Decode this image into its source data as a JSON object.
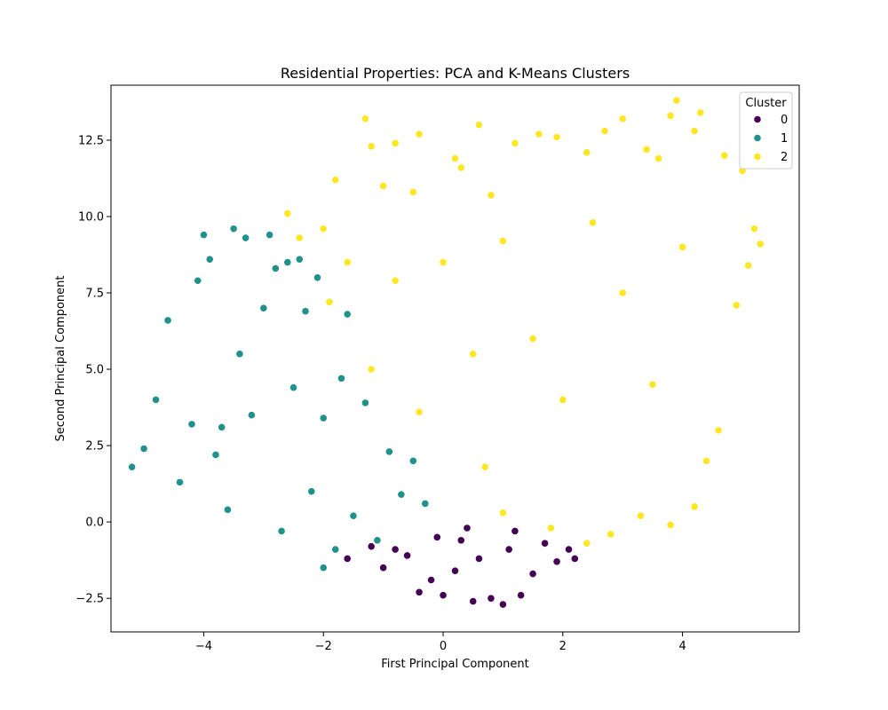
{
  "chart_data": {
    "type": "scatter",
    "title": "Residential Properties: PCA and K-Means Clusters",
    "xlabel": "First Principal Component",
    "ylabel": "Second Principal Component",
    "xlim": [
      -5.55,
      5.95
    ],
    "ylim": [
      -3.6,
      14.3
    ],
    "xticks": [
      -4,
      -2,
      0,
      2,
      4
    ],
    "xtick_labels": [
      "−4",
      "−2",
      "0",
      "2",
      "4"
    ],
    "yticks": [
      -2.5,
      0.0,
      2.5,
      5.0,
      7.5,
      10.0,
      12.5
    ],
    "ytick_labels": [
      "−2.5",
      "0.0",
      "2.5",
      "5.0",
      "7.5",
      "10.0",
      "12.5"
    ],
    "grid": false,
    "legend": {
      "title": "Cluster",
      "placement": "top-right",
      "entries": [
        {
          "label": "0",
          "color": "#440154"
        },
        {
          "label": "1",
          "color": "#21918c"
        },
        {
          "label": "2",
          "color": "#fde725"
        }
      ]
    },
    "series": [
      {
        "name": "0",
        "color": "#440154",
        "points": [
          [
            -1.6,
            -1.2
          ],
          [
            -1.2,
            -0.8
          ],
          [
            -1.0,
            -1.5
          ],
          [
            -0.6,
            -1.1
          ],
          [
            -0.4,
            -2.3
          ],
          [
            -0.2,
            -1.9
          ],
          [
            0.0,
            -2.4
          ],
          [
            0.2,
            -1.6
          ],
          [
            0.3,
            -0.6
          ],
          [
            0.5,
            -2.6
          ],
          [
            0.6,
            -1.2
          ],
          [
            0.8,
            -2.5
          ],
          [
            1.0,
            -2.7
          ],
          [
            1.1,
            -0.9
          ],
          [
            1.3,
            -2.4
          ],
          [
            1.5,
            -1.7
          ],
          [
            1.7,
            -0.7
          ],
          [
            1.9,
            -1.3
          ],
          [
            2.1,
            -0.9
          ],
          [
            2.2,
            -1.2
          ],
          [
            -0.8,
            -0.9
          ],
          [
            0.4,
            -0.2
          ],
          [
            1.2,
            -0.3
          ],
          [
            -0.1,
            -0.5
          ]
        ]
      },
      {
        "name": "1",
        "color": "#21918c",
        "points": [
          [
            -5.2,
            1.8
          ],
          [
            -5.0,
            2.4
          ],
          [
            -4.8,
            4.0
          ],
          [
            -4.6,
            6.6
          ],
          [
            -4.4,
            1.3
          ],
          [
            -4.2,
            3.2
          ],
          [
            -4.1,
            7.9
          ],
          [
            -4.0,
            9.4
          ],
          [
            -3.9,
            8.6
          ],
          [
            -3.8,
            2.2
          ],
          [
            -3.6,
            0.4
          ],
          [
            -3.5,
            9.6
          ],
          [
            -3.4,
            5.5
          ],
          [
            -3.3,
            9.3
          ],
          [
            -3.2,
            3.5
          ],
          [
            -3.0,
            7.0
          ],
          [
            -2.9,
            9.4
          ],
          [
            -2.8,
            8.3
          ],
          [
            -2.7,
            -0.3
          ],
          [
            -2.6,
            8.5
          ],
          [
            -2.5,
            4.4
          ],
          [
            -2.4,
            8.6
          ],
          [
            -2.3,
            6.9
          ],
          [
            -2.2,
            1.0
          ],
          [
            -2.1,
            8.0
          ],
          [
            -2.0,
            3.4
          ],
          [
            -1.8,
            -0.9
          ],
          [
            -1.7,
            4.7
          ],
          [
            -1.5,
            0.2
          ],
          [
            -1.3,
            3.9
          ],
          [
            -1.1,
            -0.6
          ],
          [
            -0.9,
            2.3
          ],
          [
            -0.7,
            0.9
          ],
          [
            -0.5,
            2.0
          ],
          [
            -0.3,
            0.6
          ],
          [
            -2.0,
            -1.5
          ],
          [
            -3.7,
            3.1
          ],
          [
            -1.6,
            6.8
          ]
        ]
      },
      {
        "name": "2",
        "color": "#fde725",
        "points": [
          [
            -2.6,
            10.1
          ],
          [
            -2.4,
            9.3
          ],
          [
            -2.0,
            9.6
          ],
          [
            -1.8,
            11.2
          ],
          [
            -1.6,
            8.5
          ],
          [
            -1.3,
            13.2
          ],
          [
            -1.2,
            12.3
          ],
          [
            -1.0,
            11.0
          ],
          [
            -0.8,
            12.4
          ],
          [
            -0.5,
            10.8
          ],
          [
            -0.4,
            12.7
          ],
          [
            0.2,
            11.9
          ],
          [
            0.3,
            11.6
          ],
          [
            0.6,
            13.0
          ],
          [
            0.8,
            10.7
          ],
          [
            1.2,
            12.4
          ],
          [
            1.6,
            12.7
          ],
          [
            1.9,
            12.6
          ],
          [
            2.4,
            12.1
          ],
          [
            2.7,
            12.8
          ],
          [
            3.0,
            13.2
          ],
          [
            3.4,
            12.2
          ],
          [
            3.6,
            11.9
          ],
          [
            3.8,
            13.3
          ],
          [
            3.9,
            13.8
          ],
          [
            4.2,
            12.8
          ],
          [
            4.3,
            13.4
          ],
          [
            4.7,
            12.0
          ],
          [
            5.0,
            11.5
          ],
          [
            5.2,
            9.6
          ],
          [
            5.3,
            9.1
          ],
          [
            5.1,
            8.4
          ],
          [
            4.9,
            7.1
          ],
          [
            4.6,
            3.0
          ],
          [
            4.4,
            2.0
          ],
          [
            4.2,
            0.5
          ],
          [
            3.8,
            -0.1
          ],
          [
            3.3,
            0.2
          ],
          [
            2.8,
            -0.4
          ],
          [
            2.4,
            -0.7
          ],
          [
            1.8,
            -0.2
          ],
          [
            1.0,
            0.3
          ],
          [
            0.7,
            1.8
          ],
          [
            -0.4,
            3.6
          ],
          [
            -1.2,
            5.0
          ],
          [
            -1.9,
            7.2
          ],
          [
            0.0,
            8.5
          ],
          [
            1.5,
            6.0
          ],
          [
            3.0,
            7.5
          ],
          [
            2.0,
            4.0
          ],
          [
            -0.8,
            7.9
          ],
          [
            0.5,
            5.5
          ],
          [
            3.5,
            4.5
          ],
          [
            4.0,
            9.0
          ],
          [
            2.5,
            9.8
          ],
          [
            1.0,
            9.2
          ]
        ]
      }
    ]
  }
}
